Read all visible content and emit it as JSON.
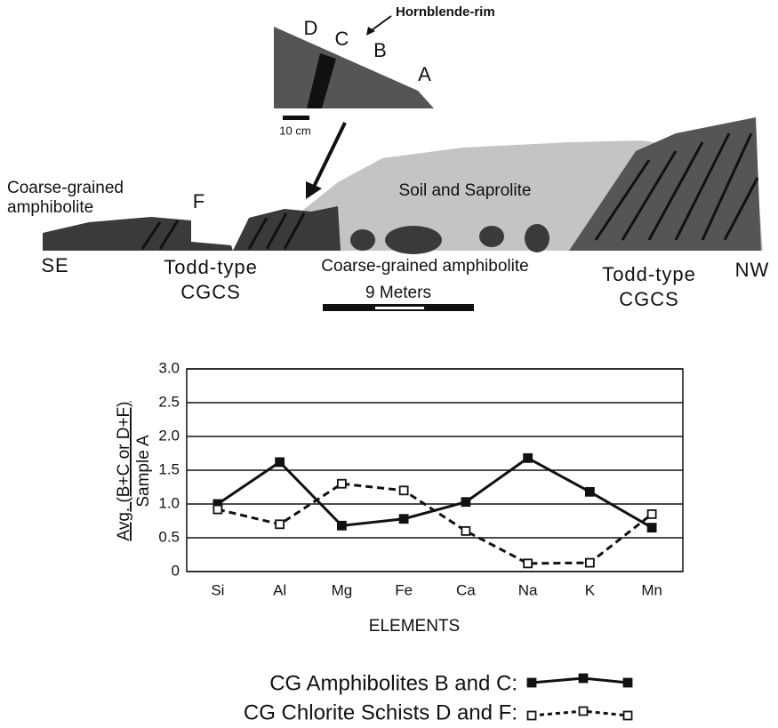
{
  "diagram": {
    "inset_labels": [
      "D",
      "C",
      "B",
      "A"
    ],
    "rim_label": "Hornblende-rim",
    "inset_scale": "10 cm",
    "left_unit": [
      "Coarse-grained",
      "amphibolite"
    ],
    "f_label": "F",
    "soil_label": "Soil and Saprolite",
    "se": "SE",
    "nw": "NW",
    "todd_left": [
      "Todd-type",
      "CGCS"
    ],
    "todd_right": [
      "Todd-type",
      "CGCS"
    ],
    "middle_unit": "Coarse-grained amphibolite",
    "scale": "9 Meters"
  },
  "chart_data": {
    "type": "line",
    "ylabel": [
      "Avg. (B+C or D+F)",
      "Sample A"
    ],
    "xlabel": "ELEMENTS",
    "categories": [
      "Si",
      "Al",
      "Mg",
      "Fe",
      "Ca",
      "Na",
      "K",
      "Mn"
    ],
    "series": [
      {
        "name": "CG Amphibolites B and C:",
        "color": "#111111",
        "marker": "filled-square",
        "dash": false,
        "values": [
          1.0,
          1.62,
          0.68,
          0.78,
          1.03,
          1.68,
          1.18,
          0.65
        ]
      },
      {
        "name": "CG Chlorite Schists D and F:",
        "color": "#111111",
        "marker": "open-square",
        "dash": true,
        "values": [
          0.92,
          0.7,
          1.3,
          1.2,
          0.6,
          0.12,
          0.13,
          0.85
        ]
      }
    ],
    "ylim": [
      0,
      3
    ],
    "yticks": [
      0,
      0.5,
      {
        "value": 1,
        "label": "1.0"
      },
      1.5,
      {
        "value": 2,
        "label": "2.0"
      },
      2.5,
      {
        "value": 3,
        "label": "3.0"
      }
    ],
    "grid": true
  }
}
